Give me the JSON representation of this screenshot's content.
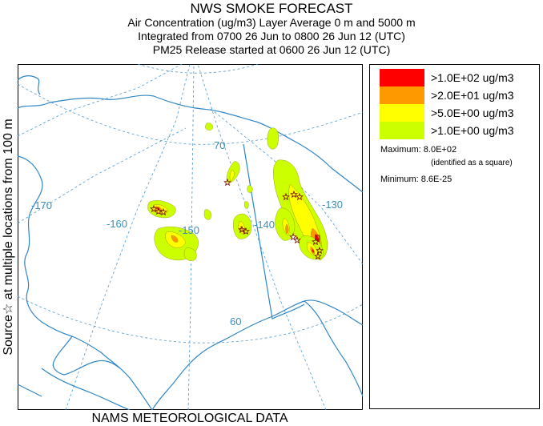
{
  "header": {
    "title": "NWS SMOKE FORECAST",
    "line2": "Air Concentration (ug/m3) Layer Average    0 m and  5000 m",
    "line3": "Integrated from 0700 26 Jun to 0800 26 Jun 12 (UTC)",
    "line4": "PM25 Release started at 0600 26 Jun 12 (UTC)"
  },
  "side_label": "Source☆ at multiple locations   from   100 m",
  "footer": "NAMS METEOROLOGICAL DATA",
  "map": {
    "graticule_labels": {
      "lon_170": "-170",
      "lon_160": "-160",
      "lon_150": "-150",
      "lon_140": "-140",
      "lon_130": "-130",
      "lat_70": "70",
      "lat_60": "60"
    },
    "colors": {
      "coast": "#2f86c6",
      "graticule": "#4a9ad0",
      "level1": "#ff0000",
      "level2": "#ff9900",
      "level3": "#ffff00",
      "level4": "#ccff00",
      "source_marker": "#7a0000"
    }
  },
  "legend": {
    "items": [
      {
        "label": ">1.0E+02 ug/m3",
        "color": "#ff0000"
      },
      {
        "label": ">2.0E+01 ug/m3",
        "color": "#ff9900"
      },
      {
        "label": ">5.0E+00 ug/m3",
        "color": "#ffff00"
      },
      {
        "label": ">1.0E+00 ug/m3",
        "color": "#ccff00"
      }
    ],
    "maximum": "Maximum: 8.0E+02",
    "maximum_note": "(identified as a square)",
    "minimum": "Minimum: 8.6E-25"
  }
}
